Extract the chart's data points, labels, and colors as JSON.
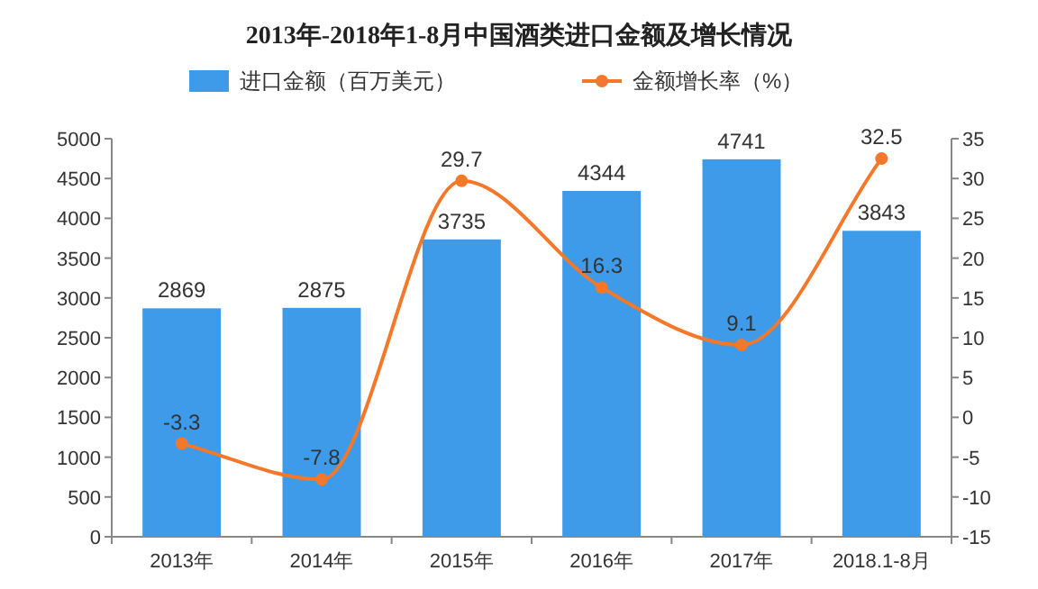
{
  "chart_data": {
    "type": "bar",
    "title": "2013年-2018年1-8月中国酒类进口金额及增长情况",
    "categories": [
      "2013年",
      "2014年",
      "2015年",
      "2016年",
      "2017年",
      "2018.1-8月"
    ],
    "series": [
      {
        "name": "进口金额（百万美元）",
        "color": "#3d9be9",
        "values": [
          2869,
          2875,
          3735,
          4344,
          4741,
          3843
        ]
      },
      {
        "name": "金额增长率（%）",
        "type": "line",
        "axis": "y2",
        "color": "#f4782a",
        "marker": "circle",
        "values": [
          -3.3,
          -7.8,
          29.7,
          16.3,
          9.1,
          32.5
        ]
      }
    ],
    "ylim": [
      0,
      5000
    ],
    "yticks": [
      0,
      500,
      1000,
      1500,
      2000,
      2500,
      3000,
      3500,
      4000,
      4500,
      5000
    ],
    "y2lim": [
      -15,
      35
    ],
    "y2ticks": [
      -15,
      -10,
      -5,
      0,
      5,
      10,
      15,
      20,
      25,
      30,
      35
    ],
    "data_labels": true,
    "legend": "top",
    "grid": false
  }
}
